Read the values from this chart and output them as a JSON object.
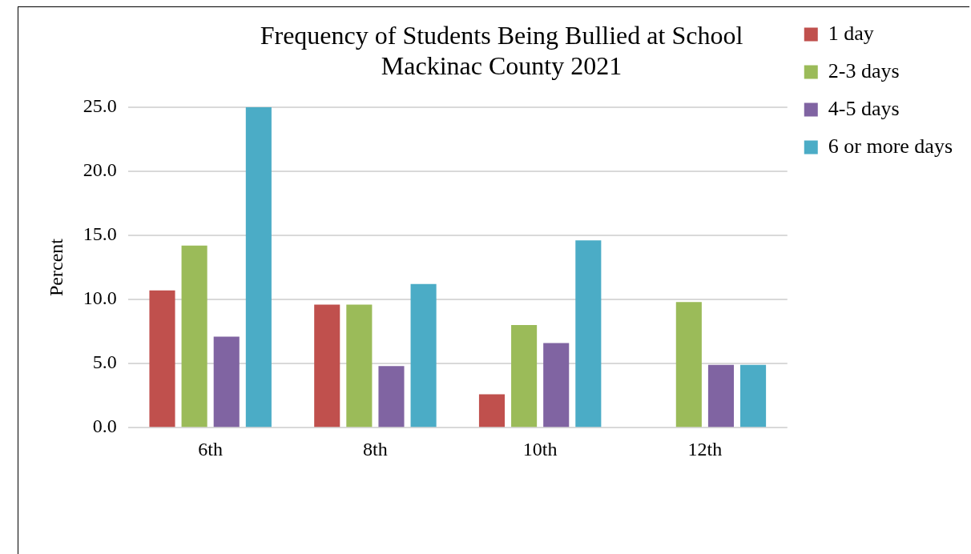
{
  "chart_data": {
    "type": "bar",
    "title": "Frequency of Students Being Bullied at School\nMackinac County 2021",
    "ylabel": "Percent",
    "categories": [
      "6th",
      "8th",
      "10th",
      "12th"
    ],
    "series": [
      {
        "name": "1 day",
        "color": "#c0504d",
        "values": [
          10.7,
          9.6,
          2.6,
          0
        ]
      },
      {
        "name": "2-3 days",
        "color": "#9bbb59",
        "values": [
          14.2,
          9.6,
          8.0,
          9.8
        ]
      },
      {
        "name": "4-5 days",
        "color": "#8064a2",
        "values": [
          7.1,
          4.8,
          6.6,
          4.9
        ]
      },
      {
        "name": "6 or more days",
        "color": "#4bacc6",
        "values": [
          25.0,
          11.2,
          14.6,
          4.9
        ]
      }
    ],
    "ylim": [
      0,
      25
    ],
    "yticks": [
      {
        "value": 0,
        "label": "0.0"
      },
      {
        "value": 5,
        "label": "5.0"
      },
      {
        "value": 10,
        "label": "10.0"
      },
      {
        "value": 15,
        "label": "15.0"
      },
      {
        "value": 20,
        "label": "20.0"
      },
      {
        "value": 25,
        "label": "25.0"
      }
    ],
    "grid": "y",
    "legend": "top right"
  }
}
